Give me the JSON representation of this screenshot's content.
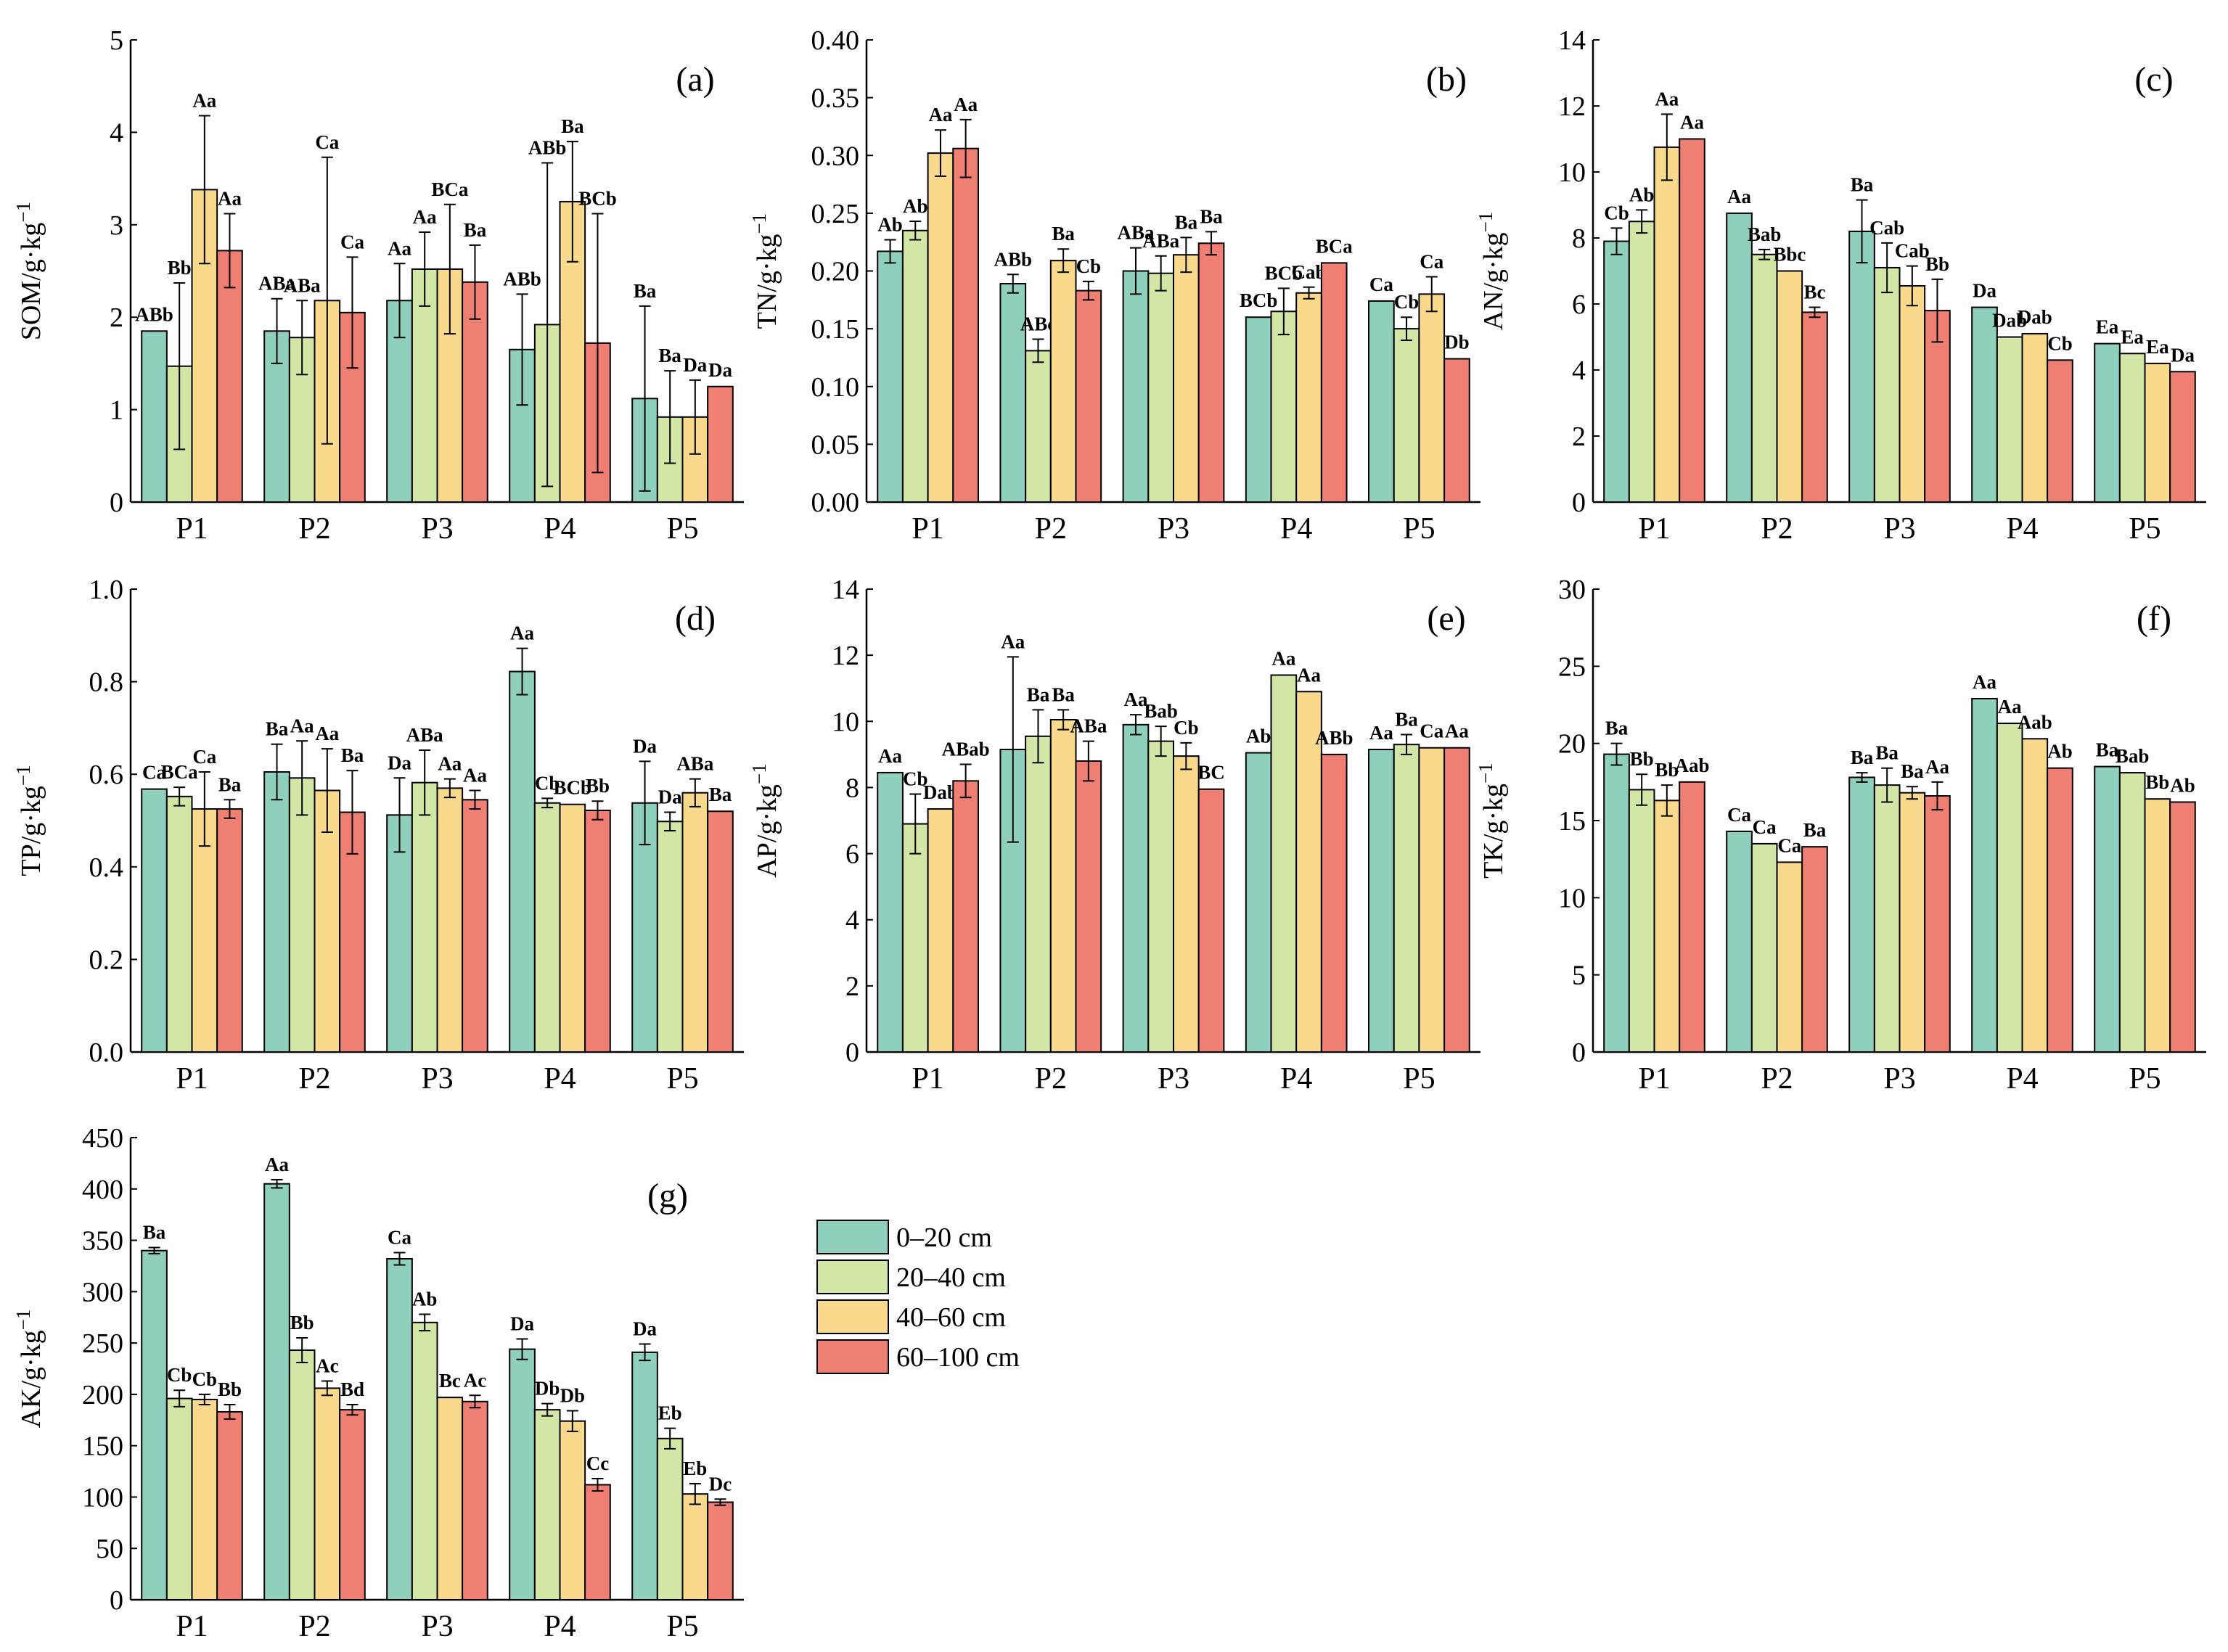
{
  "depths": [
    "0–20 cm",
    "20–40 cm",
    "40–60 cm",
    "60–100 cm"
  ],
  "colors": [
    "#8ecfbd",
    "#d2e6a6",
    "#f9d98b",
    "#ef7e73"
  ],
  "chart_data": [
    {
      "type": "bar",
      "panel": "(a)",
      "ylabel": "SOM/g·kg",
      "categories": [
        "P1",
        "P2",
        "P3",
        "P4",
        "P5"
      ],
      "ylim": [
        0,
        5
      ],
      "yticks": [
        "0",
        "1",
        "2",
        "3",
        "4",
        "5"
      ],
      "series": [
        {
          "name": "0–20 cm",
          "values": [
            1.85,
            1.85,
            2.18,
            1.65,
            1.12
          ],
          "err": [
            0,
            0.35,
            0.4,
            0.6,
            1.0
          ],
          "labels": [
            "ABb",
            "ABa",
            "Aa",
            "ABb",
            "Ba"
          ]
        },
        {
          "name": "20–40 cm",
          "values": [
            1.47,
            1.78,
            2.52,
            1.92,
            0.92
          ],
          "err": [
            0.9,
            0.4,
            0.4,
            1.75,
            0.5
          ],
          "labels": [
            "Bb",
            "ABa",
            "Aa",
            "ABb",
            "Ba"
          ]
        },
        {
          "name": "40–60 cm",
          "values": [
            3.38,
            2.18,
            2.52,
            3.25,
            0.92
          ],
          "err": [
            0.8,
            1.55,
            0.7,
            0.65,
            0.4
          ],
          "labels": [
            "Aa",
            "Ca",
            "BCa",
            "Ba",
            "Da"
          ]
        },
        {
          "name": "60–100 cm",
          "values": [
            2.72,
            2.05,
            2.38,
            1.72,
            1.25
          ],
          "err": [
            0.4,
            0.6,
            0.4,
            1.4,
            0
          ],
          "labels": [
            "Aa",
            "Ca",
            "Ba",
            "BCb",
            "Da"
          ]
        }
      ]
    },
    {
      "type": "bar",
      "panel": "(b)",
      "ylabel": "TN/g·kg",
      "categories": [
        "P1",
        "P2",
        "P3",
        "P4",
        "P5"
      ],
      "ylim": [
        0,
        0.4
      ],
      "yticks": [
        "0.00",
        "0.05",
        "0.10",
        "0.15",
        "0.20",
        "0.25",
        "0.30",
        "0.35",
        "0.40"
      ],
      "series": [
        {
          "name": "0–20 cm",
          "values": [
            0.217,
            0.189,
            0.2,
            0.16,
            0.174
          ],
          "err": [
            0.01,
            0.008,
            0.02,
            0,
            0
          ],
          "labels": [
            "Ab",
            "ABb",
            "ABa",
            "BCb",
            "Ca"
          ]
        },
        {
          "name": "20–40 cm",
          "values": [
            0.235,
            0.131,
            0.198,
            0.165,
            0.15
          ],
          "err": [
            0.008,
            0.01,
            0.015,
            0.02,
            0.01
          ],
          "labels": [
            "Ab",
            "ABc",
            "ABa",
            "BCb",
            "Cb"
          ]
        },
        {
          "name": "40–60 cm",
          "values": [
            0.302,
            0.209,
            0.214,
            0.181,
            0.18
          ],
          "err": [
            0.02,
            0.01,
            0.015,
            0.005,
            0.015
          ],
          "labels": [
            "Aa",
            "Ba",
            "Ba",
            "Cab",
            "Ca"
          ]
        },
        {
          "name": "60–100 cm",
          "values": [
            0.306,
            0.183,
            0.224,
            0.207,
            0.124
          ],
          "err": [
            0.025,
            0.008,
            0.01,
            0,
            0
          ],
          "labels": [
            "Aa",
            "Cb",
            "Ba",
            "BCa",
            "Db"
          ]
        }
      ]
    },
    {
      "type": "bar",
      "panel": "(c)",
      "ylabel": "AN/g·kg",
      "categories": [
        "P1",
        "P2",
        "P3",
        "P4",
        "P5"
      ],
      "ylim": [
        0,
        14
      ],
      "yticks": [
        "0",
        "2",
        "4",
        "6",
        "8",
        "10",
        "12",
        "14"
      ],
      "series": [
        {
          "name": "0–20 cm",
          "values": [
            7.9,
            8.75,
            8.2,
            5.9,
            4.8
          ],
          "err": [
            0.4,
            0,
            0.95,
            0,
            0
          ],
          "labels": [
            "Cb",
            "Aa",
            "Ba",
            "Da",
            "Ea"
          ]
        },
        {
          "name": "20–40 cm",
          "values": [
            8.5,
            7.5,
            7.1,
            5.0,
            4.5
          ],
          "err": [
            0.35,
            0.15,
            0.75,
            0,
            0
          ],
          "labels": [
            "Ab",
            "Bab",
            "Cab",
            "Dab",
            "Ea"
          ]
        },
        {
          "name": "40–60 cm",
          "values": [
            10.75,
            7.0,
            6.55,
            5.1,
            4.2
          ],
          "err": [
            1.0,
            0,
            0.6,
            0,
            0
          ],
          "labels": [
            "Aa",
            "Bbc",
            "Cab",
            "Dab",
            "Ea"
          ]
        },
        {
          "name": "60–100 cm",
          "values": [
            11.0,
            5.75,
            5.8,
            4.3,
            3.95
          ],
          "err": [
            0,
            0.15,
            0.95,
            0,
            0
          ],
          "labels": [
            "Aa",
            "Bc",
            "Bb",
            "Cb",
            "Da"
          ]
        }
      ]
    },
    {
      "type": "bar",
      "panel": "(d)",
      "ylabel": "TP/g·kg",
      "categories": [
        "P1",
        "P2",
        "P3",
        "P4",
        "P5"
      ],
      "ylim": [
        0,
        1.0
      ],
      "yticks": [
        "0.0",
        "0.2",
        "0.4",
        "0.6",
        "0.8",
        "1.0"
      ],
      "series": [
        {
          "name": "0–20 cm",
          "values": [
            0.568,
            0.605,
            0.512,
            0.822,
            0.538
          ],
          "err": [
            0,
            0.06,
            0.08,
            0.05,
            0.09
          ],
          "labels": [
            "Ca",
            "Ba",
            "Da",
            "Aa",
            "Da"
          ]
        },
        {
          "name": "20–40 cm",
          "values": [
            0.552,
            0.592,
            0.582,
            0.538,
            0.498
          ],
          "err": [
            0.02,
            0.08,
            0.07,
            0.01,
            0.02
          ],
          "labels": [
            "BCa",
            "Aa",
            "ABa",
            "Cb",
            "Da"
          ]
        },
        {
          "name": "40–60 cm",
          "values": [
            0.525,
            0.565,
            0.57,
            0.535,
            0.56
          ],
          "err": [
            0.08,
            0.09,
            0.02,
            0,
            0.03
          ],
          "labels": [
            "Ca",
            "Aa",
            "Aa",
            "BCb",
            "ABa"
          ]
        },
        {
          "name": "60–100 cm",
          "values": [
            0.525,
            0.518,
            0.545,
            0.522,
            0.52
          ],
          "err": [
            0.02,
            0.09,
            0.02,
            0.02,
            0
          ],
          "labels": [
            "Ba",
            "Ba",
            "Aa",
            "Bb",
            "Ba"
          ]
        }
      ]
    },
    {
      "type": "bar",
      "panel": "(e)",
      "ylabel": "AP/g·kg",
      "categories": [
        "P1",
        "P2",
        "P3",
        "P4",
        "P5"
      ],
      "ylim": [
        0,
        14
      ],
      "yticks": [
        "0",
        "2",
        "4",
        "6",
        "8",
        "10",
        "12",
        "14"
      ],
      "series": [
        {
          "name": "0–20 cm",
          "values": [
            8.45,
            9.15,
            9.9,
            9.05,
            9.15
          ],
          "err": [
            0,
            2.8,
            0.3,
            0,
            0
          ],
          "labels": [
            "Aa",
            "Aa",
            "Aa",
            "Ab",
            "Aa"
          ]
        },
        {
          "name": "20–40 cm",
          "values": [
            6.9,
            9.55,
            9.4,
            11.4,
            9.3
          ],
          "err": [
            0.9,
            0.8,
            0.45,
            0,
            0.3
          ],
          "labels": [
            "Cb",
            "Ba",
            "Bab",
            "Aa",
            "Ba"
          ]
        },
        {
          "name": "40–60 cm",
          "values": [
            7.35,
            10.05,
            8.95,
            10.9,
            9.2
          ],
          "err": [
            0,
            0.3,
            0.4,
            0,
            0
          ],
          "labels": [
            "Dab",
            "Ba",
            "Cb",
            "Aa",
            "Ca"
          ]
        },
        {
          "name": "60–100 cm",
          "values": [
            8.2,
            8.8,
            7.95,
            9.0,
            9.2
          ],
          "err": [
            0.5,
            0.6,
            0,
            0,
            0
          ],
          "labels": [
            "ABab",
            "ABa",
            "BC",
            "ABb",
            "Aa"
          ]
        }
      ]
    },
    {
      "type": "bar",
      "panel": "(f)",
      "ylabel": "TK/g·kg",
      "categories": [
        "P1",
        "P2",
        "P3",
        "P4",
        "P5"
      ],
      "ylim": [
        0,
        30
      ],
      "yticks": [
        "0",
        "5",
        "10",
        "15",
        "20",
        "25",
        "30"
      ],
      "series": [
        {
          "name": "0–20 cm",
          "values": [
            19.3,
            14.3,
            17.8,
            22.9,
            18.5
          ],
          "err": [
            0.7,
            0,
            0.3,
            0,
            0
          ],
          "labels": [
            "Ba",
            "Ca",
            "Ba",
            "Aa",
            "Ba"
          ]
        },
        {
          "name": "20–40 cm",
          "values": [
            17.0,
            13.5,
            17.3,
            21.3,
            18.1
          ],
          "err": [
            1.0,
            0,
            1.1,
            0,
            0
          ],
          "labels": [
            "Bb",
            "Ca",
            "Ba",
            "Aa",
            "Bab"
          ]
        },
        {
          "name": "40–60 cm",
          "values": [
            16.3,
            12.3,
            16.8,
            20.3,
            16.4
          ],
          "err": [
            1.0,
            0,
            0.4,
            0,
            0
          ],
          "labels": [
            "Bb",
            "Ca",
            "Ba",
            "Aab",
            "Bb"
          ]
        },
        {
          "name": "60–100 cm",
          "values": [
            17.5,
            13.3,
            16.6,
            18.4,
            16.2
          ],
          "err": [
            0,
            0,
            0.9,
            0,
            0
          ],
          "labels": [
            "Aab",
            "Ba",
            "Aa",
            "Ab",
            "Ab"
          ]
        }
      ]
    },
    {
      "type": "bar",
      "panel": "(g)",
      "ylabel": "AK/g·kg",
      "categories": [
        "P1",
        "P2",
        "P3",
        "P4",
        "P5"
      ],
      "ylim": [
        0,
        450
      ],
      "yticks": [
        "0",
        "50",
        "100",
        "150",
        "200",
        "250",
        "300",
        "350",
        "400",
        "450"
      ],
      "series": [
        {
          "name": "0–20 cm",
          "values": [
            340,
            405,
            332,
            244,
            241
          ],
          "err": [
            3,
            4,
            6,
            10,
            8
          ],
          "labels": [
            "Ba",
            "Aa",
            "Ca",
            "Da",
            "Da"
          ]
        },
        {
          "name": "20–40 cm",
          "values": [
            196,
            243,
            270,
            185,
            157
          ],
          "err": [
            8,
            12,
            8,
            6,
            10
          ],
          "labels": [
            "Cb",
            "Bb",
            "Ab",
            "Db",
            "Eb"
          ]
        },
        {
          "name": "40–60 cm",
          "values": [
            195,
            206,
            197,
            174,
            103
          ],
          "err": [
            5,
            7,
            0,
            10,
            10
          ],
          "labels": [
            "Cb",
            "Ac",
            "Bc",
            "Db",
            "Eb"
          ]
        },
        {
          "name": "60–100 cm",
          "values": [
            183,
            185,
            193,
            112,
            95
          ],
          "err": [
            7,
            5,
            6,
            6,
            3
          ],
          "labels": [
            "Bb",
            "Bd",
            "Ac",
            "Cc",
            "Dc"
          ]
        }
      ]
    }
  ]
}
